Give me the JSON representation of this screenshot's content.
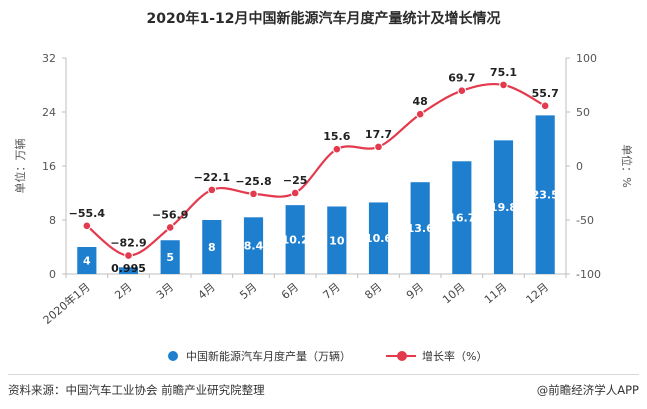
{
  "title": "2020年1-12月中国新能源汽车月度产量统计及增长情况",
  "chart_data": {
    "type": "bar",
    "categories": [
      "2020年1月",
      "2月",
      "3月",
      "4月",
      "5月",
      "6月",
      "7月",
      "8月",
      "9月",
      "10月",
      "11月",
      "12月"
    ],
    "series": [
      {
        "name": "中国新能源汽车月度产量（万辆）",
        "type": "bar",
        "axis": "left",
        "values": [
          4,
          0.995,
          5,
          8,
          8.4,
          10.2,
          10,
          10.6,
          13.6,
          16.7,
          19.8,
          23.5
        ],
        "labels": [
          "4",
          "0.995",
          "5",
          "8",
          "8.4",
          "10.2",
          "10",
          "10.6",
          "13.6",
          "16.7",
          "19.8",
          "23.5"
        ],
        "color": "#1f7fcf"
      },
      {
        "name": "增长率（%）",
        "type": "line",
        "axis": "right",
        "values": [
          -55.4,
          -82.9,
          -56.9,
          -22.1,
          -25.8,
          -25,
          15.6,
          17.7,
          48,
          69.7,
          75.1,
          55.7
        ],
        "labels": [
          "−55.4",
          "−82.9",
          "−56.9",
          "−22.1",
          "−25.8",
          "−25",
          "15.6",
          "17.7",
          "48",
          "69.7",
          "75.1",
          "55.7"
        ],
        "color": "#e33a4e"
      }
    ],
    "ylabel": "单位：万辆",
    "y2label": "单位：%",
    "ylim": [
      0,
      32
    ],
    "yticks": [
      0,
      8,
      16,
      24,
      32
    ],
    "y2lim": [
      -100,
      100
    ],
    "y2ticks": [
      -100,
      -50,
      0,
      50,
      100
    ],
    "y2tick_labels": [
      "-100",
      "-50",
      "0",
      "50",
      "100"
    ],
    "grid": false,
    "legend_position": "bottom"
  },
  "footer": {
    "source": "资料来源：中国汽车工业协会 前瞻产业研究院整理",
    "brand": "@前瞻经济学人APP"
  }
}
